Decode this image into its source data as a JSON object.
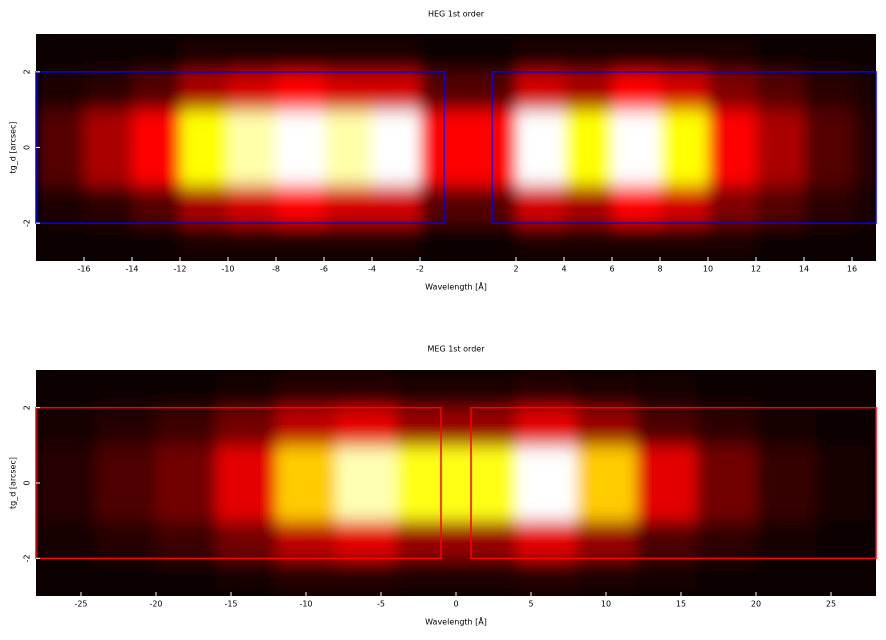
{
  "chart_data": [
    {
      "type": "heatmap",
      "title": "HEG 1st order",
      "xlabel": "Wavelength [Å]",
      "ylabel": "tg_d [arcsec]",
      "colormap": "heat",
      "xlim": [
        -18,
        17
      ],
      "ylim": [
        -3,
        3
      ],
      "xticks": [
        -16,
        -14,
        -12,
        -10,
        -8,
        -6,
        -4,
        -2,
        2,
        4,
        6,
        8,
        10,
        12,
        14,
        16
      ],
      "yticks": [
        -2,
        0,
        2
      ],
      "xbins": [
        -18,
        -16,
        -14,
        -12,
        -10,
        -8,
        -6,
        -4,
        -2,
        0,
        2,
        4,
        6,
        8,
        10,
        12,
        14,
        16,
        17
      ],
      "ybins": [
        -3,
        -2,
        -1,
        0,
        1,
        2,
        3
      ],
      "z": [
        [
          0.1,
          0.1,
          0.2,
          0.3,
          0.3,
          0.3,
          0.3,
          0.3,
          0.1,
          0.1,
          0.3,
          0.3,
          0.3,
          0.3,
          0.3,
          0.2,
          0.1,
          0.1
        ],
        [
          0.3,
          0.5,
          1,
          2,
          2.5,
          3,
          2.5,
          2.5,
          1,
          1,
          2.5,
          2,
          3,
          2.5,
          1.5,
          1,
          0.5,
          0.3
        ],
        [
          1,
          2,
          3,
          6,
          8,
          9,
          8,
          9,
          3,
          3,
          9,
          6,
          9,
          6,
          3,
          2,
          1,
          0.5
        ],
        [
          1,
          2,
          3,
          6,
          8,
          9,
          8,
          9,
          3,
          3,
          9,
          6,
          9,
          6,
          3,
          2,
          1,
          0.5
        ],
        [
          0.3,
          0.5,
          1,
          2,
          2.5,
          3,
          2.5,
          2.5,
          1,
          1,
          2.5,
          2,
          3,
          2.5,
          1.5,
          1,
          0.5,
          0.3
        ],
        [
          0.1,
          0.1,
          0.2,
          0.3,
          0.3,
          0.3,
          0.3,
          0.3,
          0.1,
          0.1,
          0.3,
          0.3,
          0.3,
          0.3,
          0.3,
          0.2,
          0.1,
          0.1
        ]
      ],
      "region_color": "#0000ff",
      "regions": [
        {
          "x": [
            -18,
            -1
          ],
          "y": [
            -2,
            2
          ]
        },
        {
          "x": [
            1,
            17
          ],
          "y": [
            -2,
            2
          ]
        }
      ]
    },
    {
      "type": "heatmap",
      "title": "MEG 1st order",
      "xlabel": "Wavelength [Å]",
      "ylabel": "tg_d [arcsec]",
      "colormap": "heat",
      "xlim": [
        -28,
        28
      ],
      "ylim": [
        -3,
        3
      ],
      "xticks": [
        -25,
        -20,
        -15,
        -10,
        -5,
        0,
        5,
        10,
        15,
        20,
        25
      ],
      "yticks": [
        -2,
        0,
        2
      ],
      "xbins": [
        -28,
        -24,
        -20,
        -16,
        -12,
        -8,
        -4,
        0,
        4,
        8,
        12,
        16,
        20,
        24,
        28
      ],
      "ybins": [
        -3,
        -2,
        -1,
        0,
        1,
        2,
        3
      ],
      "z": [
        [
          0.1,
          0.2,
          0.2,
          0.3,
          0.5,
          0.5,
          0.4,
          0.4,
          0.5,
          0.4,
          0.3,
          0.2,
          0.1,
          0.1
        ],
        [
          0.3,
          0.5,
          0.8,
          1.5,
          2.5,
          3,
          2,
          2,
          3,
          2,
          1,
          0.6,
          0.3,
          0.2
        ],
        [
          0.5,
          1,
          1.5,
          3,
          6,
          9,
          7,
          7,
          10,
          6,
          3,
          1.5,
          0.7,
          0.3
        ],
        [
          0.5,
          1,
          1.5,
          3,
          6,
          9,
          7,
          7,
          10,
          6,
          3,
          1.5,
          0.7,
          0.3
        ],
        [
          0.3,
          0.5,
          0.8,
          1.5,
          2.5,
          3,
          2,
          2,
          3,
          2,
          1,
          0.6,
          0.3,
          0.2
        ],
        [
          0.1,
          0.2,
          0.2,
          0.3,
          0.5,
          0.5,
          0.4,
          0.4,
          0.5,
          0.4,
          0.3,
          0.2,
          0.1,
          0.1
        ]
      ],
      "region_color": "#ff0000",
      "regions": [
        {
          "x": [
            -28,
            -1
          ],
          "y": [
            -2,
            2
          ]
        },
        {
          "x": [
            1,
            28
          ],
          "y": [
            -2,
            2
          ]
        }
      ]
    }
  ]
}
